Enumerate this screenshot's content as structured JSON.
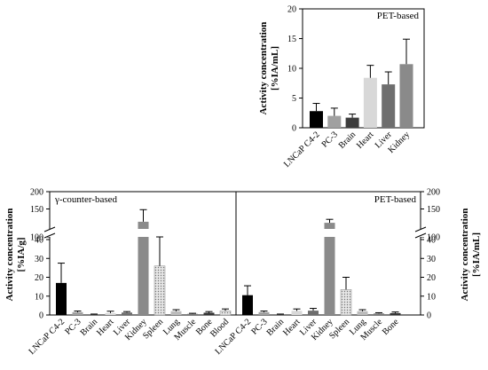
{
  "chart_data": [
    {
      "type": "bar",
      "title": "PET-based",
      "ylabel": "Activity concentration",
      "yunit": "[%IA/mL]",
      "ylim": [
        0,
        20
      ],
      "yticks": [
        "0",
        "5",
        "10",
        "15",
        "20"
      ],
      "categories": [
        "LNCaP C4-2",
        "PC-3",
        "Brain",
        "Heart",
        "Liver",
        "Kidney"
      ],
      "values": [
        2.8,
        2.0,
        1.7,
        8.4,
        7.3,
        10.7
      ],
      "errors": [
        1.3,
        1.3,
        0.6,
        2.1,
        2.1,
        4.2
      ],
      "colors": [
        "#000000",
        "#a0a0a0",
        "#3c3c3c",
        "#d8d8d8",
        "#6e6e6e",
        "#8a8a8a"
      ],
      "grid": false
    },
    {
      "type": "bar",
      "title": "γ-counter-based",
      "ylabel": "Activity concentration",
      "yunit": "[%IA/g]",
      "ylim": [
        0,
        200
      ],
      "axis_break": [
        40,
        100
      ],
      "yticks_lower": [
        "0",
        "10",
        "20",
        "30",
        "40"
      ],
      "yticks_upper": [
        "100",
        "150",
        "200"
      ],
      "categories": [
        "LNCaP C4-2",
        "PC-3",
        "Brain",
        "Heart",
        "Liver",
        "Kidney",
        "Spleen",
        "Lung",
        "Muscle",
        "Bone",
        "Blood"
      ],
      "values": [
        17.0,
        1.5,
        0.3,
        1.0,
        1.3,
        113,
        26.0,
        2.0,
        0.6,
        1.2,
        2.2
      ],
      "errors": [
        10.5,
        0.6,
        0.2,
        1.0,
        0.5,
        35,
        16.0,
        0.8,
        0.3,
        0.6,
        1.0
      ],
      "colors": [
        "#000000",
        "#a0a0a0",
        "#3c3c3c",
        "#d8d8d8",
        "#6e6e6e",
        "#8a8a8a",
        "#dcdcdc",
        "#bcbcbc",
        "#7a7a7a",
        "#333333",
        "#eeeeee"
      ],
      "patterns": [
        "",
        "",
        "",
        "",
        "",
        "",
        "dots",
        "",
        "",
        "",
        "dots"
      ],
      "grid": false
    },
    {
      "type": "bar",
      "title": "PET-based",
      "ylabel": "Activity concentration",
      "yunit": "[%IA/mL]",
      "ylim": [
        0,
        200
      ],
      "axis_break": [
        40,
        100
      ],
      "yticks_lower": [
        "0",
        "10",
        "20",
        "30",
        "40"
      ],
      "yticks_upper": [
        "100",
        "150",
        "200"
      ],
      "categories": [
        "LNCaP C4-2",
        "PC-3",
        "Brain",
        "Heart",
        "Liver",
        "Kidney",
        "Spleen",
        "Lung",
        "Muscle",
        "Bone"
      ],
      "values": [
        10.5,
        1.5,
        0.3,
        2.2,
        2.3,
        110,
        13.5,
        2.0,
        0.8,
        1.0
      ],
      "errors": [
        5.0,
        0.6,
        0.2,
        1.0,
        1.2,
        10,
        6.5,
        0.8,
        0.4,
        0.6
      ],
      "colors": [
        "#000000",
        "#a0a0a0",
        "#3c3c3c",
        "#d8d8d8",
        "#6e6e6e",
        "#8a8a8a",
        "#dcdcdc",
        "#bcbcbc",
        "#7a7a7a",
        "#333333"
      ],
      "patterns": [
        "",
        "",
        "",
        "",
        "",
        "",
        "dots",
        "",
        "",
        ""
      ],
      "grid": false
    }
  ]
}
